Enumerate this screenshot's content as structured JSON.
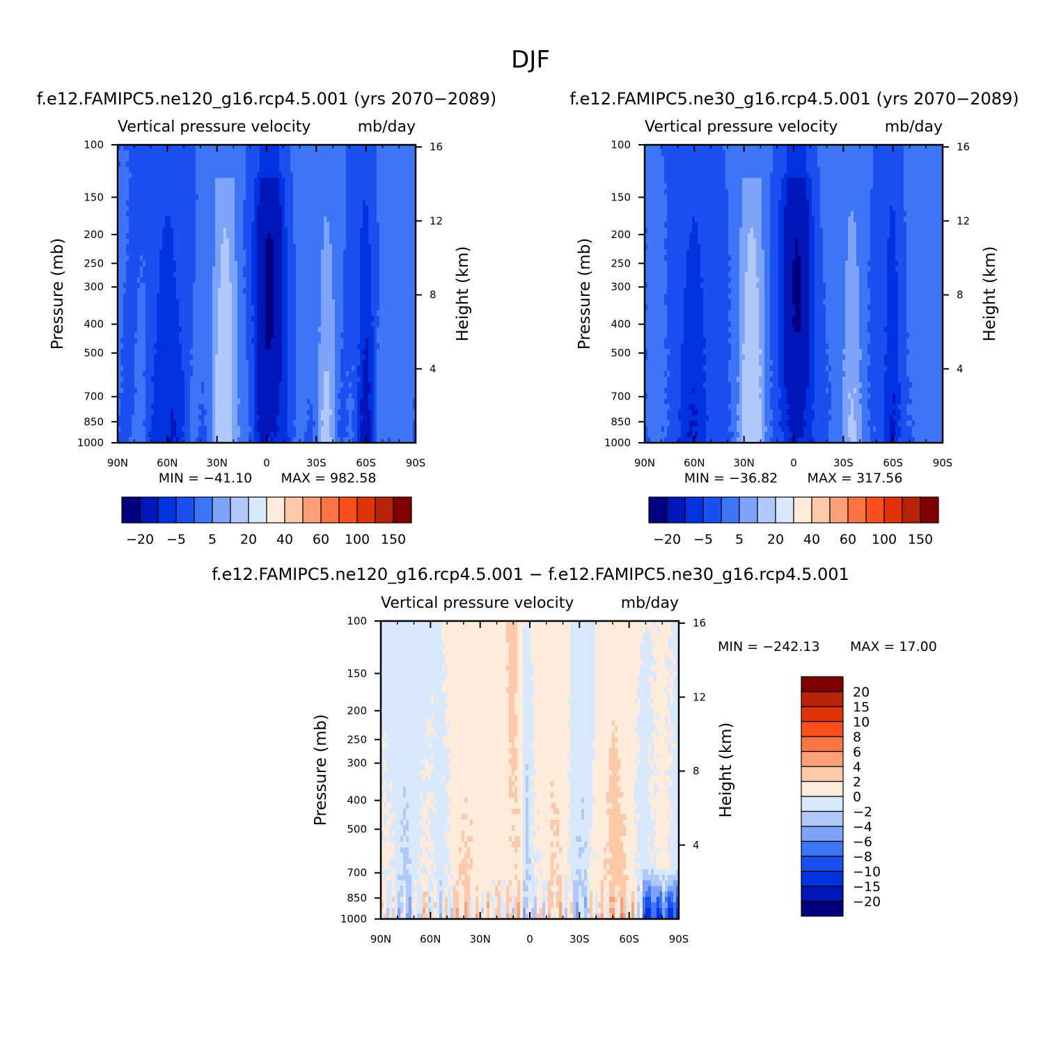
{
  "page_title": "DJF",
  "colors": {
    "abs": [
      "#00007f",
      "#0016b8",
      "#0033e0",
      "#1a4ff0",
      "#3d75f7",
      "#7ea3f8",
      "#b0c9fa",
      "#d9e9fd",
      "#ffebd9",
      "#ffc9a9",
      "#fda07a",
      "#fb7444",
      "#f84f1c",
      "#e03308",
      "#b82207",
      "#7f0000"
    ],
    "diff": [
      "#00007f",
      "#0016b8",
      "#0033e0",
      "#1a4ff0",
      "#3d75f7",
      "#7ea3f8",
      "#b0c9fa",
      "#d9e9fd",
      "#ffebd9",
      "#ffc9a9",
      "#fda07a",
      "#fb7444",
      "#f84f1c",
      "#e03308",
      "#b82207",
      "#7f0000"
    ]
  },
  "chart_data": [
    {
      "type": "contour",
      "title": "f.e12.FAMIPC5.ne120_g16.rcp4.5.001 (yrs 2070−2089)",
      "left_title": "Vertical pressure velocity",
      "right_title": "mb/day",
      "ylabel": "Pressure (mb)",
      "ylabel_right": "Height (km)",
      "x_ticks": [
        "90N",
        "60N",
        "30N",
        "0",
        "30S",
        "60S",
        "90S"
      ],
      "y_ticks": [
        "100",
        "150",
        "200",
        "250",
        "300",
        "400",
        "500",
        "700",
        "850",
        "1000"
      ],
      "y_right_ticks": [
        "16",
        "12",
        "8",
        "4"
      ],
      "ylim": [
        1000,
        100
      ],
      "log_y": true,
      "min_label": "MIN = −41.10",
      "max_label": "MAX = 982.58",
      "min": -41.1,
      "max": 982.58,
      "colorbar": {
        "orientation": "horizontal",
        "levels": [
          -30,
          -20,
          -10,
          -5,
          0,
          5,
          10,
          20,
          30,
          40,
          50,
          60,
          80,
          100,
          120,
          150
        ],
        "tick_labels": [
          "−20",
          "−5",
          "5",
          "20",
          "40",
          "60",
          "100",
          "150"
        ]
      }
    },
    {
      "type": "contour",
      "title": "f.e12.FAMIPC5.ne30_g16.rcp4.5.001 (yrs 2070−2089)",
      "left_title": "Vertical pressure velocity",
      "right_title": "mb/day",
      "ylabel": "Pressure (mb)",
      "ylabel_right": "Height (km)",
      "x_ticks": [
        "90N",
        "60N",
        "30N",
        "0",
        "30S",
        "60S",
        "90S"
      ],
      "y_ticks": [
        "100",
        "150",
        "200",
        "250",
        "300",
        "400",
        "500",
        "700",
        "850",
        "1000"
      ],
      "y_right_ticks": [
        "16",
        "12",
        "8",
        "4"
      ],
      "ylim": [
        1000,
        100
      ],
      "log_y": true,
      "min_label": "MIN = −36.82",
      "max_label": "MAX = 317.56",
      "min": -36.82,
      "max": 317.56,
      "colorbar": {
        "orientation": "horizontal",
        "levels": [
          -30,
          -20,
          -10,
          -5,
          0,
          5,
          10,
          20,
          30,
          40,
          50,
          60,
          80,
          100,
          120,
          150
        ],
        "tick_labels": [
          "−20",
          "−5",
          "5",
          "20",
          "40",
          "60",
          "100",
          "150"
        ]
      }
    },
    {
      "type": "contour",
      "title": "f.e12.FAMIPC5.ne120_g16.rcp4.5.001 − f.e12.FAMIPC5.ne30_g16.rcp4.5.001",
      "left_title": "Vertical pressure velocity",
      "right_title": "mb/day",
      "ylabel": "Pressure (mb)",
      "ylabel_right": "Height (km)",
      "x_ticks": [
        "90N",
        "60N",
        "30N",
        "0",
        "30S",
        "60S",
        "90S"
      ],
      "y_ticks": [
        "100",
        "150",
        "200",
        "250",
        "300",
        "400",
        "500",
        "700",
        "850",
        "1000"
      ],
      "y_right_ticks": [
        "16",
        "12",
        "8",
        "4"
      ],
      "ylim": [
        1000,
        100
      ],
      "log_y": true,
      "min_label": "MIN = −242.13",
      "max_label": "MAX =   17.00",
      "min": -242.13,
      "max": 17.0,
      "colorbar": {
        "orientation": "vertical",
        "levels": [
          -20,
          -15,
          -10,
          -8,
          -6,
          -4,
          -2,
          0,
          2,
          4,
          6,
          8,
          10,
          15,
          20
        ],
        "tick_labels": [
          "20",
          "15",
          "10",
          "8",
          "6",
          "4",
          "2",
          "0",
          "−2",
          "−4",
          "−6",
          "−8",
          "−10",
          "−15",
          "−20"
        ]
      }
    }
  ]
}
